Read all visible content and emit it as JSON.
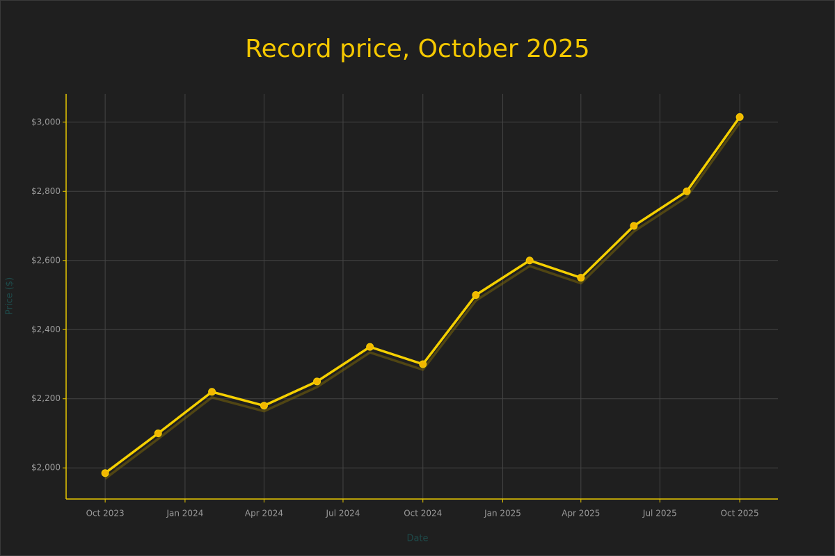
{
  "chart_data": {
    "type": "line",
    "title": "Record price, October 2025",
    "x_label": "Date",
    "y_label": "Price ($)",
    "x": [
      "2023-10",
      "2023-12",
      "2024-02",
      "2024-04",
      "2024-06",
      "2024-08",
      "2024-10",
      "2024-12",
      "2025-02",
      "2025-04",
      "2025-06",
      "2025-08",
      "2025-10"
    ],
    "series": [
      {
        "name": "Price",
        "color": "#f5d000",
        "values": [
          1985,
          2100,
          2220,
          2180,
          2250,
          2350,
          2300,
          2500,
          2600,
          2550,
          2700,
          2800,
          3015
        ]
      }
    ],
    "xlim": [
      "2023-08-17",
      "2025-11-14"
    ],
    "xticks": [
      {
        "value": "2023-10",
        "label": "Oct 2023"
      },
      {
        "value": "2024-01",
        "label": "Jan 2024"
      },
      {
        "value": "2024-04",
        "label": "Apr 2024"
      },
      {
        "value": "2024-07",
        "label": "Jul 2024"
      },
      {
        "value": "2024-10",
        "label": "Oct 2024"
      },
      {
        "value": "2025-01",
        "label": "Jan 2025"
      },
      {
        "value": "2025-04",
        "label": "Apr 2025"
      },
      {
        "value": "2025-07",
        "label": "Jul 2025"
      },
      {
        "value": "2025-10",
        "label": "Oct 2025"
      }
    ],
    "ylim": [
      1910,
      3082
    ],
    "yticks": [
      {
        "value": 2000,
        "label": "$2,000"
      },
      {
        "value": 2200,
        "label": "$2,200"
      },
      {
        "value": 2400,
        "label": "$2,400"
      },
      {
        "value": 2600,
        "label": "$2,600"
      },
      {
        "value": 2800,
        "label": "$2,800"
      },
      {
        "value": 3000,
        "label": "$3,000"
      }
    ],
    "grid": true,
    "axis_color": "#e8c800",
    "title_color": "#f5c800"
  }
}
